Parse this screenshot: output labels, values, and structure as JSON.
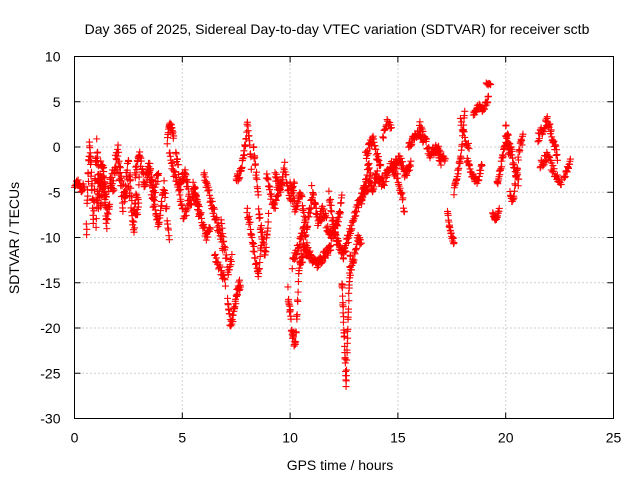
{
  "chart_data": {
    "type": "scatter",
    "title": "Day 365 of 2025, Sidereal Day-to-day VTEC variation (SDTVAR) for receiver sctb",
    "xlabel": "GPS time / hours",
    "ylabel": "SDTVAR / TECUs",
    "xlim": [
      0,
      25
    ],
    "ylim": [
      -30,
      10
    ],
    "xticks": [
      0,
      5,
      10,
      15,
      20,
      25
    ],
    "yticks": [
      -30,
      -25,
      -20,
      -15,
      -10,
      -5,
      0,
      5,
      10
    ],
    "grid": true,
    "marker": "+",
    "color": "#ff0000",
    "series": [
      {
        "name": "SDTVAR",
        "segments": [
          {
            "t0": 0.0,
            "t1": 0.45,
            "anchors": [
              -4.5,
              -3.8,
              -4.8,
              -4.2
            ],
            "noise": 0.8,
            "n": 20
          },
          {
            "t0": 0.55,
            "t1": 1.5,
            "anchors": [
              -9,
              1,
              -8,
              0,
              -6,
              -3,
              -8
            ],
            "noise": 3,
            "n": 90
          },
          {
            "t0": 1.0,
            "t1": 3.0,
            "anchors": [
              -8,
              -2,
              -7,
              -4,
              -1,
              -6,
              -3,
              -8,
              -5
            ],
            "noise": 3.5,
            "n": 160
          },
          {
            "t0": 2.8,
            "t1": 3.9,
            "anchors": [
              -3,
              -1,
              -4,
              -2,
              -5,
              -3
            ],
            "noise": 1.5,
            "n": 60
          },
          {
            "t0": 3.4,
            "t1": 4.4,
            "anchors": [
              -2,
              -6,
              -9,
              -4,
              -10
            ],
            "noise": 1.5,
            "n": 50
          },
          {
            "t0": 4.3,
            "t1": 4.6,
            "anchors": [
              0.5,
              2.5,
              2.2,
              1
            ],
            "noise": 0.6,
            "n": 20
          },
          {
            "t0": 4.4,
            "t1": 5.3,
            "anchors": [
              -1,
              -3,
              -5,
              -8,
              -6
            ],
            "noise": 1.2,
            "n": 40
          },
          {
            "t0": 4.7,
            "t1": 5.8,
            "anchors": [
              -1,
              -4,
              -3,
              -6,
              -5,
              -8
            ],
            "noise": 1.5,
            "n": 60
          },
          {
            "t0": 5.5,
            "t1": 6.3,
            "anchors": [
              -4,
              -6,
              -8,
              -10,
              -9
            ],
            "noise": 1,
            "n": 40
          },
          {
            "t0": 6.0,
            "t1": 6.9,
            "anchors": [
              -3,
              -5,
              -7,
              -9,
              -11
            ],
            "noise": 1.2,
            "n": 45
          },
          {
            "t0": 6.5,
            "t1": 7.0,
            "anchors": [
              -12,
              -13,
              -14,
              -15
            ],
            "noise": 0.8,
            "n": 20
          },
          {
            "t0": 6.8,
            "t1": 7.3,
            "anchors": [
              -8,
              -11,
              -14,
              -12
            ],
            "noise": 1,
            "n": 22
          },
          {
            "t0": 7.1,
            "t1": 7.7,
            "anchors": [
              -17,
              -20,
              -18,
              -16,
              -15
            ],
            "noise": 1.2,
            "n": 40
          },
          {
            "t0": 7.5,
            "t1": 8.2,
            "anchors": [
              -3.5,
              -3,
              -1,
              2.5,
              -2
            ],
            "noise": 1,
            "n": 40
          },
          {
            "t0": 8.0,
            "t1": 8.7,
            "anchors": [
              -7,
              -9,
              -12,
              -14,
              -10
            ],
            "noise": 1.2,
            "n": 40
          },
          {
            "t0": 8.3,
            "t1": 9.0,
            "anchors": [
              0,
              -3,
              -8,
              -10,
              -12,
              -8
            ],
            "noise": 1.5,
            "n": 45
          },
          {
            "t0": 8.9,
            "t1": 9.6,
            "anchors": [
              -3,
              -5,
              -7,
              -5,
              -4
            ],
            "noise": 1,
            "n": 35
          },
          {
            "t0": 9.3,
            "t1": 10.2,
            "anchors": [
              -3,
              -5,
              -2,
              -6,
              -4
            ],
            "noise": 1.2,
            "n": 45
          },
          {
            "t0": 9.9,
            "t1": 10.6,
            "anchors": [
              -16,
              -20,
              -22,
              -13,
              -12
            ],
            "noise": 1.5,
            "n": 50
          },
          {
            "t0": 10.0,
            "t1": 11.0,
            "anchors": [
              -4,
              -7,
              -5,
              -9,
              -6
            ],
            "noise": 1.2,
            "n": 50
          },
          {
            "t0": 10.1,
            "t1": 10.9,
            "anchors": [
              -13,
              -11,
              -9,
              -12
            ],
            "noise": 1,
            "n": 35
          },
          {
            "t0": 10.6,
            "t1": 11.9,
            "anchors": [
              -11,
              -12,
              -13,
              -12,
              -11
            ],
            "noise": 1,
            "n": 70
          },
          {
            "t0": 11.0,
            "t1": 12.4,
            "anchors": [
              -5,
              -8,
              -7,
              -10,
              -9,
              -6
            ],
            "noise": 1.5,
            "n": 80
          },
          {
            "t0": 11.8,
            "t1": 12.7,
            "anchors": [
              -5,
              -9,
              -11,
              -12,
              -10
            ],
            "noise": 1.2,
            "n": 50
          },
          {
            "t0": 12.4,
            "t1": 12.8,
            "anchors": [
              -15,
              -20,
              -26,
              -18,
              -12
            ],
            "noise": 1.5,
            "n": 50
          },
          {
            "t0": 12.8,
            "t1": 13.3,
            "anchors": [
              -14,
              -12,
              -10,
              -11
            ],
            "noise": 1,
            "n": 25
          },
          {
            "t0": 12.7,
            "t1": 13.7,
            "anchors": [
              -10,
              -8,
              -6,
              -5,
              -4
            ],
            "noise": 1,
            "n": 50
          },
          {
            "t0": 13.3,
            "t1": 14.0,
            "anchors": [
              -6,
              -4,
              -2,
              -5,
              -3
            ],
            "noise": 1.2,
            "n": 40
          },
          {
            "t0": 13.5,
            "t1": 14.2,
            "anchors": [
              -1,
              0,
              1,
              -1,
              -2
            ],
            "noise": 1,
            "n": 35
          },
          {
            "t0": 14.0,
            "t1": 15.3,
            "anchors": [
              -3,
              -4,
              -2,
              -3,
              -7
            ],
            "noise": 1.2,
            "n": 60
          },
          {
            "t0": 14.3,
            "t1": 14.7,
            "anchors": [
              1,
              3,
              2
            ],
            "noise": 0.6,
            "n": 15
          },
          {
            "t0": 14.8,
            "t1": 15.6,
            "anchors": [
              -2,
              -1,
              -3,
              -2
            ],
            "noise": 1,
            "n": 40
          },
          {
            "t0": 15.5,
            "t1": 16.2,
            "anchors": [
              0,
              1,
              1.5,
              0.5
            ],
            "noise": 0.8,
            "n": 35
          },
          {
            "t0": 16.0,
            "t1": 17.0,
            "anchors": [
              2.5,
              1,
              -1,
              0,
              -1.5
            ],
            "noise": 1,
            "n": 50
          },
          {
            "t0": 16.7,
            "t1": 17.2,
            "anchors": [
              -0.5,
              0,
              -1,
              -1.5
            ],
            "noise": 0.6,
            "n": 20
          },
          {
            "t0": 17.3,
            "t1": 17.6,
            "anchors": [
              -7,
              -9,
              -10,
              -10.5
            ],
            "noise": 0.6,
            "n": 20
          },
          {
            "t0": 17.6,
            "t1": 18.1,
            "anchors": [
              -5,
              -3,
              -1,
              4
            ],
            "noise": 0.8,
            "n": 30
          },
          {
            "t0": 17.9,
            "t1": 18.3,
            "anchors": [
              3,
              1,
              0
            ],
            "noise": 0.8,
            "n": 15
          },
          {
            "t0": 18.2,
            "t1": 18.9,
            "anchors": [
              -1.5,
              -3,
              -4,
              -2
            ],
            "noise": 0.8,
            "n": 35
          },
          {
            "t0": 18.5,
            "t1": 19.2,
            "anchors": [
              3.5,
              4.5,
              4,
              5.5
            ],
            "noise": 0.7,
            "n": 35
          },
          {
            "t0": 19.1,
            "t1": 19.3,
            "anchors": [
              7,
              6.8
            ],
            "noise": 0.3,
            "n": 8
          },
          {
            "t0": 19.4,
            "t1": 19.7,
            "anchors": [
              -7.5,
              -8,
              -7
            ],
            "noise": 0.5,
            "n": 20
          },
          {
            "t0": 19.6,
            "t1": 20.2,
            "anchors": [
              -4,
              -2,
              1,
              -1
            ],
            "noise": 1,
            "n": 35
          },
          {
            "t0": 20.0,
            "t1": 20.6,
            "anchors": [
              2,
              0,
              -2,
              -4
            ],
            "noise": 1.2,
            "n": 35
          },
          {
            "t0": 20.2,
            "t1": 20.8,
            "anchors": [
              -5,
              -6,
              -3,
              0,
              1
            ],
            "noise": 1,
            "n": 30
          },
          {
            "t0": 21.5,
            "t1": 22.4,
            "anchors": [
              1,
              2,
              3,
              1,
              -1
            ],
            "noise": 1,
            "n": 45
          },
          {
            "t0": 21.6,
            "t1": 22.6,
            "anchors": [
              -2,
              -1,
              -3,
              -4
            ],
            "noise": 1,
            "n": 40
          },
          {
            "t0": 22.7,
            "t1": 23.0,
            "anchors": [
              -3.5,
              -2.5,
              -1.5
            ],
            "noise": 0.6,
            "n": 15
          }
        ]
      }
    ]
  }
}
